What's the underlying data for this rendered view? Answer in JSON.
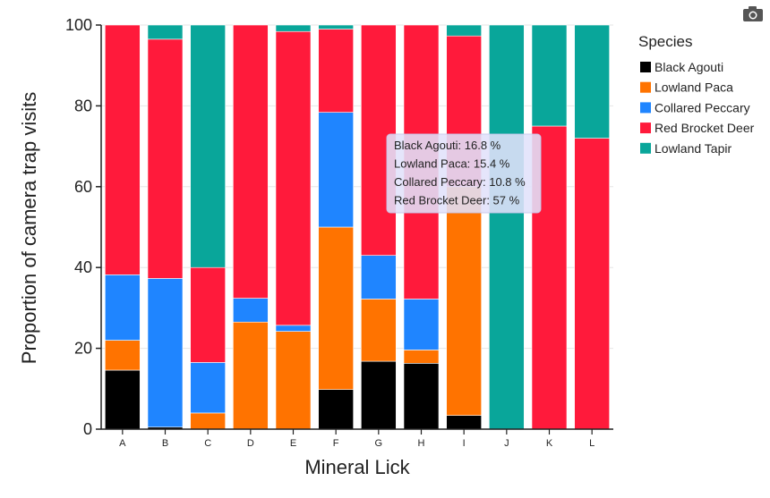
{
  "chart_data": {
    "type": "bar",
    "stacked": true,
    "xlabel": "Mineral Lick",
    "ylabel": "Proportion of camera trap visits",
    "ylim": [
      0,
      100
    ],
    "yticks": [
      0,
      20,
      40,
      60,
      80,
      100
    ],
    "categories": [
      "A",
      "B",
      "C",
      "D",
      "E",
      "F",
      "G",
      "H",
      "I",
      "J",
      "K",
      "L"
    ],
    "series": [
      {
        "name": "Black Agouti",
        "color": "#000000",
        "values": [
          14.6,
          0.5,
          0,
          0,
          0,
          9.8,
          16.8,
          16.3,
          3.4,
          0,
          0,
          0
        ]
      },
      {
        "name": "Lowland Paca",
        "color": "#ff7300",
        "values": [
          7.4,
          0,
          4.0,
          26.5,
          24.2,
          40.2,
          15.4,
          3.3,
          56.6,
          0,
          0,
          0
        ]
      },
      {
        "name": "Collared Peccary",
        "color": "#1f85ff",
        "values": [
          16.2,
          36.8,
          12.5,
          5.9,
          1.5,
          28.4,
          10.8,
          12.6,
          0,
          0,
          0,
          0
        ]
      },
      {
        "name": "Red Brocket Deer",
        "color": "#ff1a3b",
        "values": [
          61.8,
          59.2,
          23.5,
          67.6,
          72.7,
          20.6,
          57.0,
          67.8,
          37.3,
          0,
          75,
          72
        ]
      },
      {
        "name": "Lowland Tapir",
        "color": "#09a69a",
        "values": [
          0,
          3.5,
          60.0,
          0,
          1.6,
          1.0,
          0,
          0,
          2.7,
          100,
          25,
          28
        ]
      }
    ],
    "grid": true,
    "legend": {
      "title": "Species",
      "placement": "right"
    }
  },
  "tooltip": {
    "lines": [
      "Black Agouti: 16.8 %",
      "Lowland Paca: 15.4 %",
      "Collared Peccary: 10.8 %",
      "Red Brocket Deer: 57 %"
    ]
  },
  "toolbar": {
    "camera_icon": "camera-icon"
  }
}
